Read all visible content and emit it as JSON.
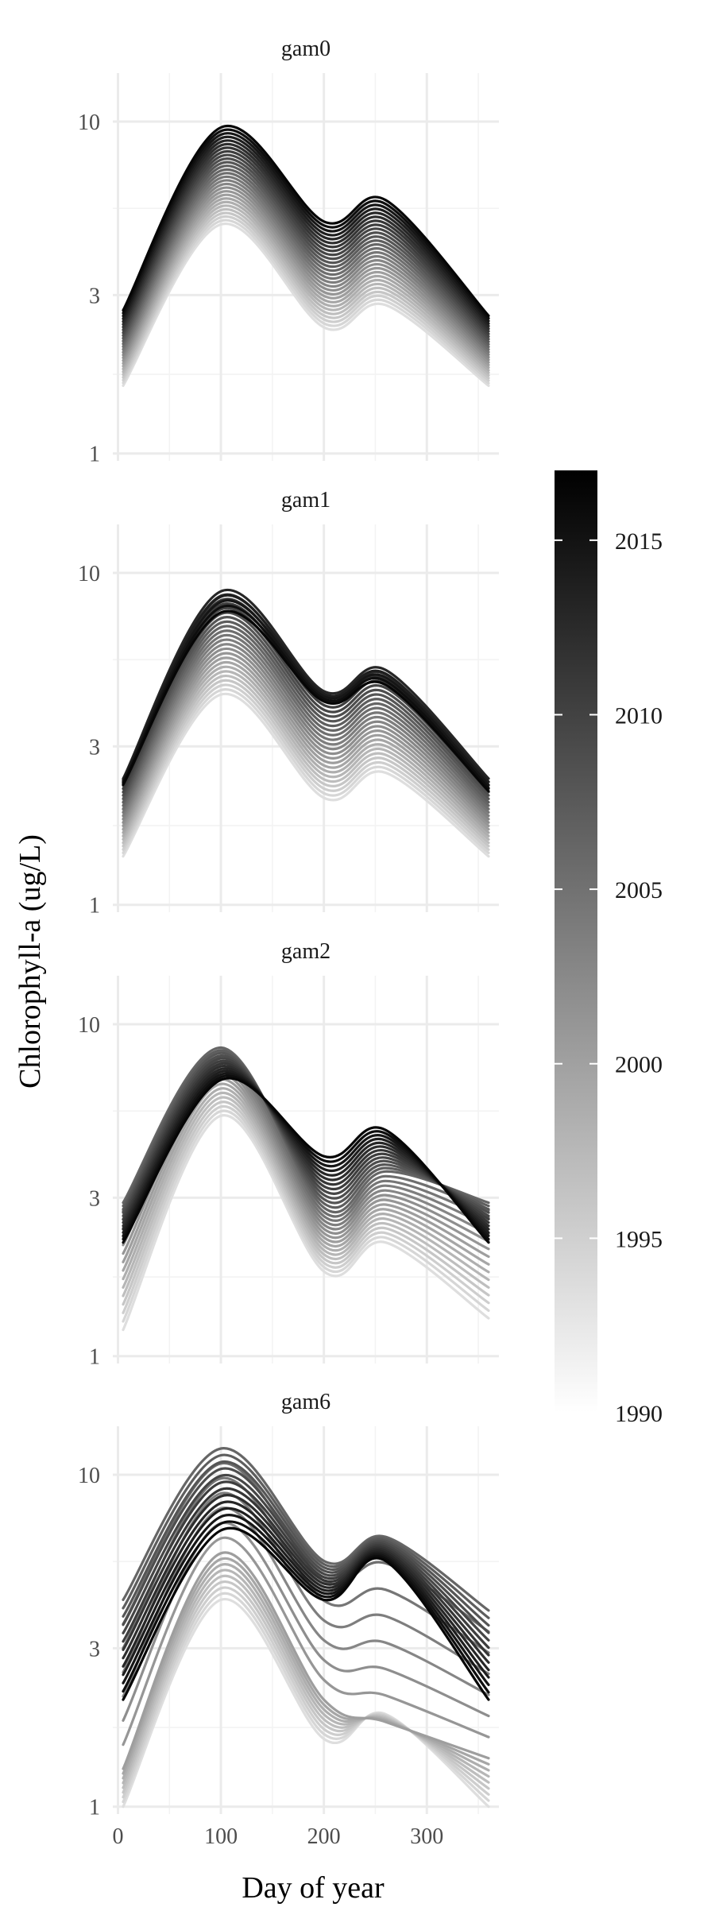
{
  "chart_data": {
    "type": "line",
    "facet_by": "model",
    "xlabel": "Day of year",
    "ylabel": "Chlorophyll-a (ug/L)",
    "x_ticks": [
      0,
      100,
      200,
      300
    ],
    "xlim": [
      -5,
      370
    ],
    "y_scale": "log",
    "y_ticks": [
      1,
      3,
      10
    ],
    "ylim": [
      0.95,
      14
    ],
    "color_scale": {
      "variable": "year",
      "type": "continuous",
      "low": "#ffffff",
      "high": "#000000",
      "range": [
        1990,
        2017
      ],
      "breaks": [
        1990,
        1995,
        2000,
        2005,
        2010,
        2015
      ],
      "legend_position": "right"
    },
    "grid": true,
    "series_years": [
      1990,
      1991,
      1992,
      1993,
      1994,
      1995,
      1996,
      1997,
      1998,
      1999,
      2000,
      2001,
      2002,
      2003,
      2004,
      2005,
      2006,
      2007,
      2008,
      2009,
      2010,
      2011,
      2012,
      2013,
      2014,
      2015,
      2016,
      2017
    ],
    "panels": [
      {
        "title": "gam0",
        "x": [
          5,
          100,
          200,
          260,
          360
        ],
        "year_lines": {
          "1990": [
            1.6,
            4.9,
            2.4,
            2.8,
            1.6
          ],
          "2017": [
            2.7,
            9.6,
            5.0,
            5.8,
            2.6
          ]
        }
      },
      {
        "title": "gam1",
        "x": [
          5,
          100,
          200,
          260,
          360
        ],
        "year_lines": {
          "1990": [
            1.4,
            4.3,
            2.1,
            2.5,
            1.4
          ],
          "2013": [
            2.4,
            8.8,
            4.4,
            5.1,
            2.4
          ],
          "2017": [
            2.3,
            7.6,
            4.1,
            4.6,
            2.2
          ]
        }
      },
      {
        "title": "gam2",
        "x": [
          5,
          100,
          200,
          260,
          360
        ],
        "year_lines": {
          "1990": [
            1.2,
            5.3,
            1.8,
            2.2,
            1.3
          ],
          "2005": [
            2.9,
            8.5,
            2.8,
            3.6,
            2.9
          ],
          "2017": [
            2.2,
            6.8,
            4.0,
            4.8,
            2.2
          ]
        }
      },
      {
        "title": "gam6",
        "x": [
          5,
          100,
          200,
          260,
          360
        ],
        "year_lines": {
          "1990": [
            1.0,
            4.2,
            1.6,
            1.9,
            1.0
          ],
          "1998": [
            1.3,
            5.8,
            2.1,
            1.8,
            1.4
          ],
          "2005": [
            4.2,
            12.0,
            5.5,
            6.5,
            3.9
          ],
          "2017": [
            2.1,
            6.8,
            4.2,
            5.5,
            2.1
          ]
        }
      }
    ]
  }
}
